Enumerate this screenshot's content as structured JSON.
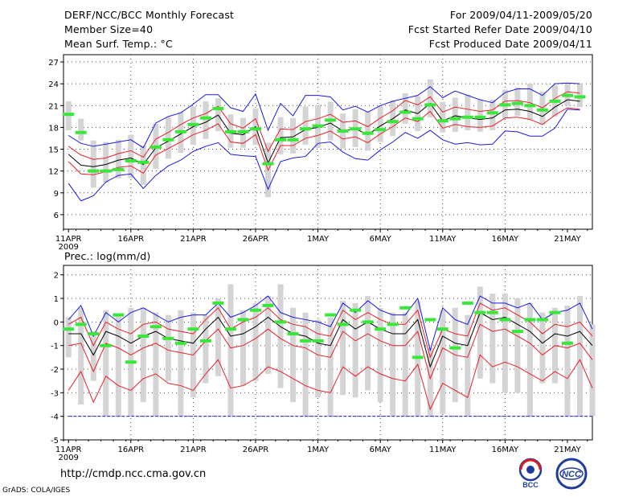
{
  "header": {
    "title": "DERF/NCC/BCC Monthly Forecast",
    "member_size": "Member Size=40",
    "variable_temp": "Mean Surf. Temp.: °C",
    "forecast_period": "For 2009/04/11-2009/05/20",
    "fcst_started": "Fcst Started Refer Date 2009/04/10",
    "fcst_produced": "Fcst Produced Date 2009/04/11"
  },
  "precip_label": "Prec.: log(mm/d)",
  "footer": {
    "url": "http://cmdp.ncc.cma.gov.cn",
    "grads": "GrADS: COLA/IGES",
    "logo_bcc": "BCC",
    "logo_ncc": "NCC"
  },
  "colors": {
    "mean": "#000000",
    "spread": "#e8202a",
    "envelope": "#1a1ae0",
    "observed": "#38e838",
    "box": "#d4d4d4"
  },
  "chart_data": [
    {
      "type": "line",
      "title": "Mean Surf. Temp.: °C",
      "x_start_label": "11APR 2009",
      "x_ticks": [
        "11APR",
        "16APR",
        "21APR",
        "26APR",
        "1MAY",
        "6MAY",
        "11MAY",
        "16MAY",
        "21MAY"
      ],
      "x_tick_days": [
        0,
        5,
        10,
        15,
        20,
        25,
        30,
        35,
        40
      ],
      "year_label": "2009",
      "ylim": [
        4,
        28
      ],
      "y_ticks": [
        6,
        9,
        12,
        15,
        18,
        21,
        24,
        27
      ],
      "grid": true,
      "series": [
        {
          "name": "ensemble mean",
          "values": [
            14.3,
            12.8,
            12.6,
            12.9,
            13.5,
            13.8,
            12.9,
            15.2,
            16.1,
            17.1,
            18.1,
            18.7,
            19.7,
            17.2,
            17.0,
            18.1,
            13.1,
            16.6,
            16.7,
            17.7,
            18.0,
            18.6,
            17.5,
            17.8,
            17.0,
            18.2,
            19.2,
            20.4,
            19.9,
            21.3,
            18.9,
            19.6,
            19.3,
            19.1,
            19.3,
            20.4,
            20.5,
            20.2,
            19.5,
            20.8,
            21.8,
            21.6
          ]
        },
        {
          "name": "upper spread",
          "values": [
            15.4,
            14.2,
            13.6,
            13.8,
            14.4,
            14.8,
            13.9,
            16.4,
            17.3,
            18.4,
            19.3,
            19.9,
            20.9,
            18.5,
            17.9,
            19.2,
            14.7,
            17.8,
            17.7,
            18.8,
            19.2,
            19.8,
            18.7,
            18.9,
            18.1,
            19.3,
            20.3,
            21.7,
            21.1,
            22.2,
            20.1,
            20.8,
            20.5,
            20.2,
            20.4,
            21.6,
            21.7,
            21.4,
            20.7,
            22.0,
            22.9,
            22.7
          ]
        },
        {
          "name": "lower spread",
          "values": [
            13.3,
            11.6,
            11.5,
            11.9,
            12.5,
            12.7,
            11.7,
            14.2,
            15.1,
            16.0,
            17.0,
            17.6,
            18.5,
            16.0,
            15.8,
            17.0,
            12.1,
            15.5,
            15.5,
            16.5,
            16.9,
            17.5,
            16.4,
            16.7,
            15.9,
            17.1,
            18.1,
            19.3,
            18.8,
            20.2,
            17.9,
            18.4,
            18.1,
            18.0,
            18.2,
            19.3,
            19.4,
            19.1,
            18.4,
            19.7,
            20.7,
            20.5
          ]
        },
        {
          "name": "upper envelope",
          "values": [
            16.9,
            15.8,
            15.4,
            15.7,
            16.0,
            16.3,
            15.2,
            18.6,
            19.5,
            20.0,
            21.2,
            22.5,
            22.5,
            20.7,
            20.2,
            22.6,
            17.6,
            21.3,
            19.6,
            22.4,
            22.4,
            22.2,
            20.4,
            20.9,
            20.1,
            21.0,
            21.6,
            22.0,
            22.4,
            23.6,
            22.1,
            23.0,
            22.4,
            21.8,
            21.4,
            22.8,
            23.3,
            23.3,
            22.4,
            24.0,
            24.1,
            24.0
          ]
        },
        {
          "name": "lower envelope",
          "values": [
            10.3,
            7.9,
            8.6,
            10.5,
            11.4,
            11.6,
            9.6,
            11.4,
            12.7,
            13.5,
            14.7,
            15.4,
            15.9,
            14.3,
            14.1,
            14.0,
            9.5,
            13.3,
            13.8,
            14.0,
            15.8,
            16.0,
            14.6,
            13.7,
            13.5,
            14.9,
            16.0,
            17.3,
            16.5,
            17.6,
            16.3,
            15.7,
            15.9,
            15.6,
            15.7,
            17.5,
            17.4,
            16.8,
            16.8,
            17.9,
            20.5,
            20.4
          ]
        },
        {
          "name": "observed",
          "values": [
            19.8,
            17.3,
            12.0,
            12.0,
            12.2,
            13.4,
            13.2,
            15.3,
            16.3,
            17.4,
            18.4,
            19.3,
            20.6,
            17.4,
            17.4,
            17.8,
            13.0,
            16.3,
            16.3,
            17.8,
            18.2,
            19.0,
            17.5,
            17.8,
            17.2,
            17.7,
            18.8,
            20.1,
            19.2,
            21.1,
            18.9,
            19.2,
            19.4,
            19.4,
            20.0,
            21.1,
            21.3,
            21.0,
            20.4,
            21.6,
            22.4,
            22.2
          ]
        }
      ],
      "box_max": [
        21.6,
        19.2,
        16.2,
        16.0,
        16.3,
        17.0,
        15.5,
        18.5,
        19.4,
        20.1,
        20.9,
        21.6,
        22.0,
        19.8,
        19.3,
        20.6,
        15.9,
        19.4,
        19.3,
        20.9,
        21.1,
        21.5,
        19.9,
        20.5,
        20.2,
        21.0,
        21.7,
        22.7,
        22.3,
        24.6,
        21.5,
        22.1,
        22.5,
        21.9,
        21.8,
        23.2,
        23.5,
        24.0,
        22.9,
        23.8,
        24.0,
        24.0
      ],
      "box_min": [
        17.6,
        16.2,
        9.7,
        10.4,
        11.0,
        11.0,
        10.1,
        12.3,
        13.7,
        14.5,
        15.6,
        16.4,
        17.5,
        15.2,
        15.2,
        15.6,
        8.4,
        14.3,
        14.4,
        15.6,
        15.2,
        16.2,
        15.1,
        15.3,
        14.8,
        16.0,
        16.8,
        18.5,
        17.5,
        19.4,
        17.3,
        17.4,
        17.6,
        17.4,
        17.6,
        19.3,
        19.6,
        19.0,
        18.4,
        19.5,
        21.0,
        20.8
      ]
    },
    {
      "type": "line",
      "title": "Prec.: log(mm/d)",
      "x_start_label": "11APR 2009",
      "x_ticks": [
        "11APR",
        "16APR",
        "21APR",
        "26APR",
        "1MAY",
        "6MAY",
        "11MAY",
        "16MAY",
        "21MAY"
      ],
      "x_tick_days": [
        0,
        5,
        10,
        15,
        20,
        25,
        30,
        35,
        40
      ],
      "year_label": "2009",
      "ylim": [
        -5,
        2.4
      ],
      "y_ticks": [
        -5,
        -4,
        -3,
        -2,
        -1,
        0,
        1,
        2
      ],
      "grid": true,
      "series": [
        {
          "name": "ensemble mean",
          "values": [
            -0.5,
            -0.5,
            -1.4,
            -0.4,
            -0.6,
            -0.9,
            -0.6,
            -0.4,
            -0.7,
            -0.8,
            -0.9,
            -0.3,
            0.2,
            -0.6,
            -0.5,
            -0.2,
            0.2,
            -0.2,
            -0.5,
            -0.6,
            -0.9,
            -1.0,
            0.1,
            -0.3,
            0.0,
            -0.3,
            -0.5,
            -0.5,
            0.1,
            -1.9,
            -0.6,
            -0.9,
            -1.0,
            0.4,
            0.1,
            0.2,
            -0.1,
            -0.4,
            -0.9,
            -0.5,
            -0.6,
            -0.4,
            -1.0
          ]
        },
        {
          "name": "upper spread",
          "values": [
            -0.1,
            0.2,
            -1.0,
            0.0,
            -0.3,
            -0.5,
            -0.1,
            0.0,
            -0.3,
            -0.4,
            -0.5,
            0.1,
            0.6,
            -0.3,
            0.0,
            0.2,
            0.6,
            0.1,
            -0.1,
            -0.2,
            -0.5,
            -0.6,
            0.5,
            0.1,
            0.4,
            0.1,
            -0.1,
            -0.1,
            0.5,
            -1.5,
            -0.3,
            -0.5,
            -0.6,
            0.8,
            0.5,
            0.6,
            0.3,
            0.0,
            -0.5,
            -0.1,
            -0.2,
            0.0,
            -0.6
          ]
        },
        {
          "name": "lower spread",
          "values": [
            -1.0,
            -0.9,
            -2.1,
            -0.9,
            -1.1,
            -1.4,
            -1.1,
            -0.9,
            -1.2,
            -1.3,
            -1.4,
            -0.8,
            -0.3,
            -1.1,
            -1.0,
            -0.7,
            -0.3,
            -0.7,
            -1.0,
            -1.1,
            -1.4,
            -1.5,
            -0.4,
            -0.8,
            -0.5,
            -0.8,
            -1.0,
            -1.0,
            -0.4,
            -2.4,
            -1.1,
            -1.4,
            -1.5,
            -0.1,
            -0.4,
            -0.3,
            -0.6,
            -0.9,
            -1.4,
            -1.0,
            -1.1,
            -0.9,
            -1.6
          ]
        },
        {
          "name": "low member",
          "values": [
            -2.9,
            -2.1,
            -3.4,
            -2.3,
            -2.7,
            -2.9,
            -2.4,
            -2.2,
            -2.6,
            -2.7,
            -2.9,
            -2.2,
            -1.6,
            -2.8,
            -2.7,
            -2.4,
            -1.9,
            -2.1,
            -2.4,
            -2.7,
            -2.9,
            -3.0,
            -1.9,
            -2.3,
            -1.9,
            -2.2,
            -2.4,
            -2.5,
            -1.8,
            -3.7,
            -2.6,
            -2.9,
            -3.2,
            -1.4,
            -1.9,
            -1.7,
            -1.9,
            -2.2,
            -2.5,
            -2.1,
            -2.4,
            -1.6,
            -2.8
          ]
        },
        {
          "name": "upper envelope",
          "values": [
            0.1,
            0.7,
            -0.6,
            0.4,
            0.0,
            0.4,
            0.6,
            0.3,
            0.0,
            0.2,
            0.3,
            0.3,
            0.8,
            0.2,
            0.4,
            0.7,
            1.1,
            0.4,
            0.2,
            0.1,
            0.0,
            -0.2,
            0.8,
            0.4,
            0.9,
            0.5,
            0.3,
            0.3,
            1.0,
            -1.2,
            0.6,
            0.1,
            -0.1,
            1.1,
            0.8,
            0.8,
            0.6,
            0.8,
            0.1,
            0.4,
            0.5,
            0.8,
            -0.3
          ]
        },
        {
          "name": "min line",
          "values": [
            -4,
            -4,
            -4,
            -4,
            -4,
            -4,
            -4,
            -4,
            -4,
            -4,
            -4,
            -4,
            -4,
            -4,
            -4,
            -4,
            -4,
            -4,
            -4,
            -4,
            -4,
            -4,
            -4,
            -4,
            -4,
            -4,
            -4,
            -4,
            -4,
            -4,
            -4,
            -4,
            -4,
            -4,
            -4,
            -4,
            -4,
            -4,
            -4,
            -4,
            -4,
            -4,
            -4
          ]
        },
        {
          "name": "observed",
          "values": [
            -0.3,
            -0.1,
            -0.5,
            -1.0,
            0.3,
            -1.7,
            -0.6,
            -0.2,
            -0.7,
            -0.9,
            -0.3,
            -0.8,
            0.8,
            -0.3,
            0.1,
            0.5,
            0.7,
            0.0,
            -0.5,
            -0.8,
            -0.8,
            0.3,
            -0.1,
            0.5,
            0.0,
            -0.3,
            -0.1,
            0.6,
            -1.5,
            0.1,
            -0.3,
            -1.1,
            0.8,
            0.4,
            0.4,
            0.1,
            -0.4,
            0.1,
            0.1,
            0.4,
            -0.9,
            null,
            null
          ]
        }
      ],
      "box_max": [
        0.2,
        0.6,
        -0.4,
        0.5,
        0.3,
        0.6,
        0.6,
        0.4,
        0.3,
        0.5,
        0.4,
        0.3,
        1.0,
        1.6,
        0.5,
        0.8,
        1.1,
        1.6,
        0.6,
        0.4,
        0.1,
        0.2,
        0.9,
        0.8,
        1.1,
        0.6,
        0.4,
        0.4,
        0.9,
        -1.1,
        0.5,
        0.6,
        0.3,
        1.5,
        1.2,
        1.2,
        1.0,
        0.8,
        0.4,
        0.6,
        0.7,
        1.1,
        -0.1
      ],
      "box_min": [
        -1.5,
        -3.5,
        -2.5,
        -4.0,
        -4.0,
        -4.0,
        -3.4,
        -4.0,
        -2.5,
        -4.0,
        -3.2,
        -2.6,
        -2.3,
        -4.0,
        -2.7,
        -2.5,
        -2.2,
        -2.8,
        -3.4,
        -4.0,
        -3.2,
        -4.0,
        -3.1,
        -3.2,
        -2.9,
        -3.4,
        -4.0,
        -4.0,
        -4.0,
        -4.0,
        -3.9,
        -3.4,
        -4.0,
        -2.4,
        -2.6,
        -3.0,
        -3.0,
        -4.0,
        -2.6,
        -2.6,
        -4.0,
        -4.0,
        -4.0
      ]
    }
  ]
}
